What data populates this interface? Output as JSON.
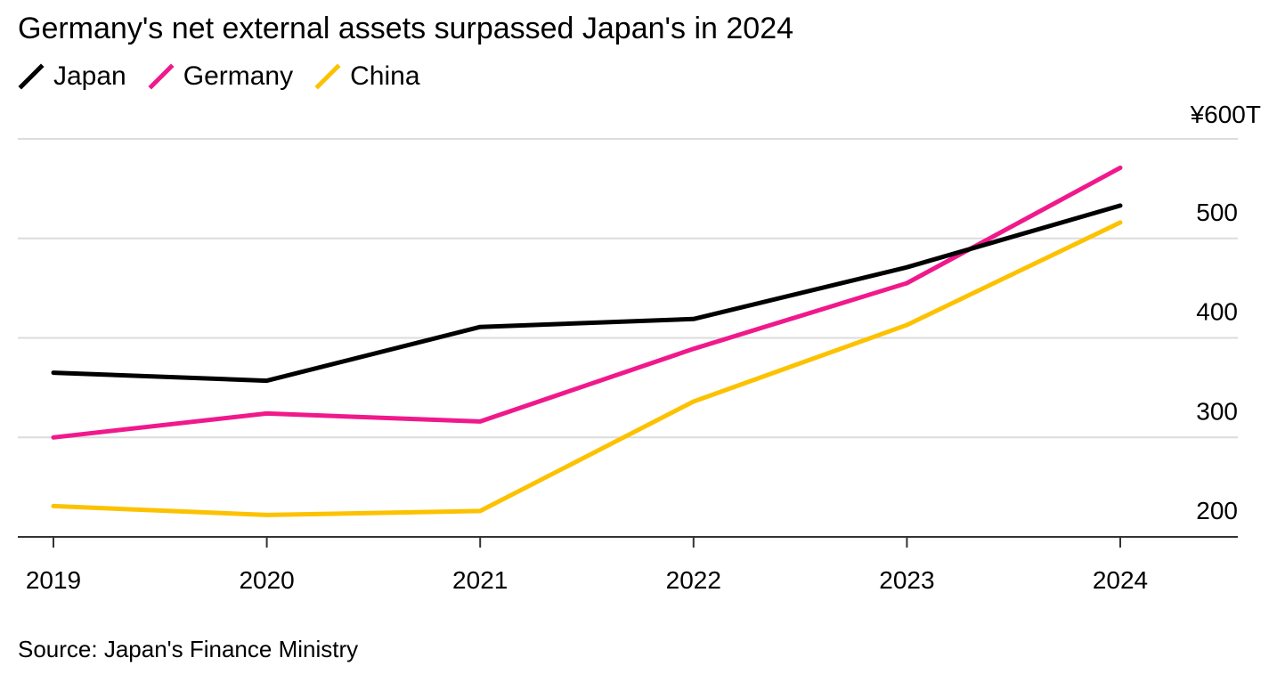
{
  "title": "Germany's net external assets surpassed Japan's in 2024",
  "source": "Source: Japan's Finance Ministry",
  "chart_data": {
    "type": "line",
    "title": "Germany's net external assets surpassed Japan's in 2024",
    "xlabel": "",
    "ylabel": "",
    "x": [
      "2019",
      "2020",
      "2021",
      "2022",
      "2023",
      "2024"
    ],
    "ylim": [
      200,
      600
    ],
    "yticks": [
      200,
      300,
      400,
      500,
      600
    ],
    "ytick_labels": [
      "200",
      "300",
      "400",
      "500",
      "¥600T"
    ],
    "y_axis_side": "right",
    "grid": true,
    "legend_position": "top-left",
    "series": [
      {
        "name": "Japan",
        "color": "#000000",
        "values": [
          365,
          357,
          411,
          419,
          471,
          533
        ]
      },
      {
        "name": "Germany",
        "color": "#f0198c",
        "values": [
          300,
          324,
          316,
          389,
          455,
          571
        ]
      },
      {
        "name": "China",
        "color": "#fcc200",
        "values": [
          231,
          222,
          226,
          336,
          413,
          516
        ]
      }
    ]
  }
}
